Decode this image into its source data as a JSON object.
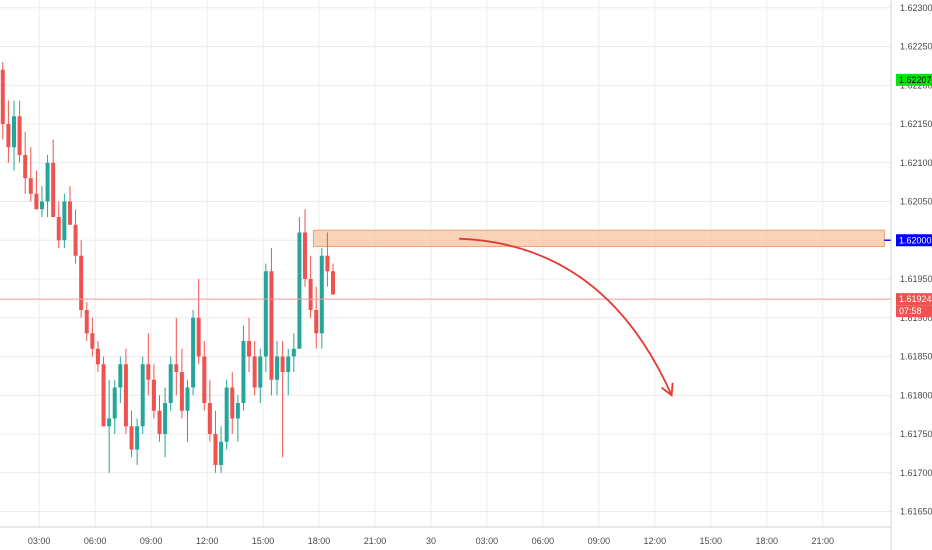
{
  "colors": {
    "up": "#26a69a",
    "down": "#ef5350",
    "grid": "#ececec",
    "axis_text": "#4a4a4a",
    "level_line": "#0000ff",
    "current_line": "#f29b9b",
    "zone_fill": "#f7c6a1",
    "zone_border": "#f0a070",
    "arrow": "#e53935",
    "tag_green": "#00e600"
  },
  "chart_data": {
    "type": "candlestick",
    "y_range": [
      1.6163,
      1.6231
    ],
    "x_range": [
      0,
      159.2
    ],
    "price_ticks": [
      "1.61650",
      "1.61700",
      "1.61750",
      "1.61800",
      "1.61850",
      "1.61900",
      "1.61950",
      "1.62000",
      "1.62050",
      "1.62100",
      "1.62150",
      "1.62200",
      "1.62250",
      "1.62300"
    ],
    "time_ticks": [
      {
        "x": 7,
        "label": "03:00"
      },
      {
        "x": 17,
        "label": "06:00"
      },
      {
        "x": 27,
        "label": "09:00"
      },
      {
        "x": 37,
        "label": "12:00"
      },
      {
        "x": 47,
        "label": "15:00"
      },
      {
        "x": 57,
        "label": "18:00"
      },
      {
        "x": 67,
        "label": "21:00"
      },
      {
        "x": 77,
        "label": "30"
      },
      {
        "x": 87,
        "label": "03:00"
      },
      {
        "x": 97,
        "label": "06:00"
      },
      {
        "x": 107,
        "label": "09:00"
      },
      {
        "x": 117,
        "label": "12:00"
      },
      {
        "x": 127,
        "label": "15:00"
      },
      {
        "x": 137,
        "label": "18:00"
      },
      {
        "x": 147,
        "label": "21:00"
      }
    ],
    "candles": [
      [
        1.6222,
        1.6223,
        1.6213,
        1.6215
      ],
      [
        1.6215,
        1.6218,
        1.621,
        1.6212
      ],
      [
        1.6212,
        1.6218,
        1.6209,
        1.6216
      ],
      [
        1.6216,
        1.6218,
        1.621,
        1.6211
      ],
      [
        1.6211,
        1.6214,
        1.6206,
        1.6208
      ],
      [
        1.6208,
        1.6212,
        1.6205,
        1.6206
      ],
      [
        1.6206,
        1.6209,
        1.6204,
        1.6204
      ],
      [
        1.6204,
        1.6207,
        1.6203,
        1.6205
      ],
      [
        1.6205,
        1.6211,
        1.6203,
        1.621
      ],
      [
        1.621,
        1.6213,
        1.6203,
        1.6203
      ],
      [
        1.6203,
        1.6205,
        1.6199,
        1.62
      ],
      [
        1.62,
        1.6206,
        1.6199,
        1.6205
      ],
      [
        1.6205,
        1.6207,
        1.6202,
        1.6202
      ],
      [
        1.6202,
        1.6204,
        1.6197,
        1.6198
      ],
      [
        1.6198,
        1.62,
        1.619,
        1.6191
      ],
      [
        1.6191,
        1.6192,
        1.6187,
        1.6188
      ],
      [
        1.6188,
        1.619,
        1.6185,
        1.6186
      ],
      [
        1.6186,
        1.6187,
        1.6183,
        1.6184
      ],
      [
        1.6184,
        1.6185,
        1.6176,
        1.6176
      ],
      [
        1.6176,
        1.6182,
        1.617,
        1.6177
      ],
      [
        1.6177,
        1.6182,
        1.6175,
        1.6181
      ],
      [
        1.6181,
        1.6185,
        1.6179,
        1.6184
      ],
      [
        1.6184,
        1.6186,
        1.6175,
        1.6176
      ],
      [
        1.6176,
        1.6178,
        1.6172,
        1.6173
      ],
      [
        1.6173,
        1.6177,
        1.6171,
        1.6176
      ],
      [
        1.6176,
        1.6185,
        1.6175,
        1.6184
      ],
      [
        1.6184,
        1.6188,
        1.618,
        1.6182
      ],
      [
        1.6182,
        1.6184,
        1.6177,
        1.6178
      ],
      [
        1.6178,
        1.618,
        1.6174,
        1.6175
      ],
      [
        1.6175,
        1.6181,
        1.6172,
        1.6179
      ],
      [
        1.6179,
        1.6185,
        1.6178,
        1.6184
      ],
      [
        1.6184,
        1.619,
        1.618,
        1.6183
      ],
      [
        1.6183,
        1.6186,
        1.6177,
        1.6178
      ],
      [
        1.6178,
        1.6182,
        1.6174,
        1.6181
      ],
      [
        1.6181,
        1.6191,
        1.618,
        1.619
      ],
      [
        1.619,
        1.6195,
        1.6184,
        1.6185
      ],
      [
        1.6185,
        1.6187,
        1.6178,
        1.6179
      ],
      [
        1.6179,
        1.6182,
        1.6174,
        1.6175
      ],
      [
        1.6175,
        1.6178,
        1.617,
        1.6171
      ],
      [
        1.6171,
        1.6176,
        1.617,
        1.6174
      ],
      [
        1.6174,
        1.6182,
        1.6173,
        1.6181
      ],
      [
        1.6181,
        1.6183,
        1.6175,
        1.6177
      ],
      [
        1.6177,
        1.618,
        1.6174,
        1.6179
      ],
      [
        1.6179,
        1.6189,
        1.6178,
        1.6187
      ],
      [
        1.6187,
        1.619,
        1.6183,
        1.6185
      ],
      [
        1.6185,
        1.6187,
        1.618,
        1.6181
      ],
      [
        1.6181,
        1.6186,
        1.6179,
        1.6185
      ],
      [
        1.6185,
        1.6197,
        1.6183,
        1.6196
      ],
      [
        1.6196,
        1.6199,
        1.618,
        1.6182
      ],
      [
        1.6182,
        1.6187,
        1.618,
        1.6185
      ],
      [
        1.6185,
        1.6187,
        1.6172,
        1.6183
      ],
      [
        1.6183,
        1.6186,
        1.618,
        1.6185
      ],
      [
        1.6185,
        1.6188,
        1.6183,
        1.6186
      ],
      [
        1.6186,
        1.6203,
        1.6186,
        1.6201
      ],
      [
        1.6201,
        1.6204,
        1.6194,
        1.6195
      ],
      [
        1.6195,
        1.6198,
        1.619,
        1.6191
      ],
      [
        1.6191,
        1.6194,
        1.6186,
        1.6188
      ],
      [
        1.6188,
        1.6199,
        1.6186,
        1.6198
      ],
      [
        1.6198,
        1.6201,
        1.6194,
        1.6196
      ],
      [
        1.6196,
        1.6197,
        1.6193,
        1.6193
      ]
    ],
    "resistance_level": 1.62,
    "resistance_zone": [
      1.61992,
      1.62013
    ],
    "resistance_zone_x": [
      56,
      158
    ],
    "current_price": 1.61924,
    "projection_arrow": {
      "from": [
        82,
        1.62002
      ],
      "ctrl": [
        108,
        1.61995
      ],
      "to": [
        120,
        1.618
      ]
    }
  },
  "price_axis": {
    "tag_green": "1.62207",
    "tag_blue": "1.62000",
    "tag_red_price": "1.61924",
    "tag_red_timer": "07:58"
  }
}
